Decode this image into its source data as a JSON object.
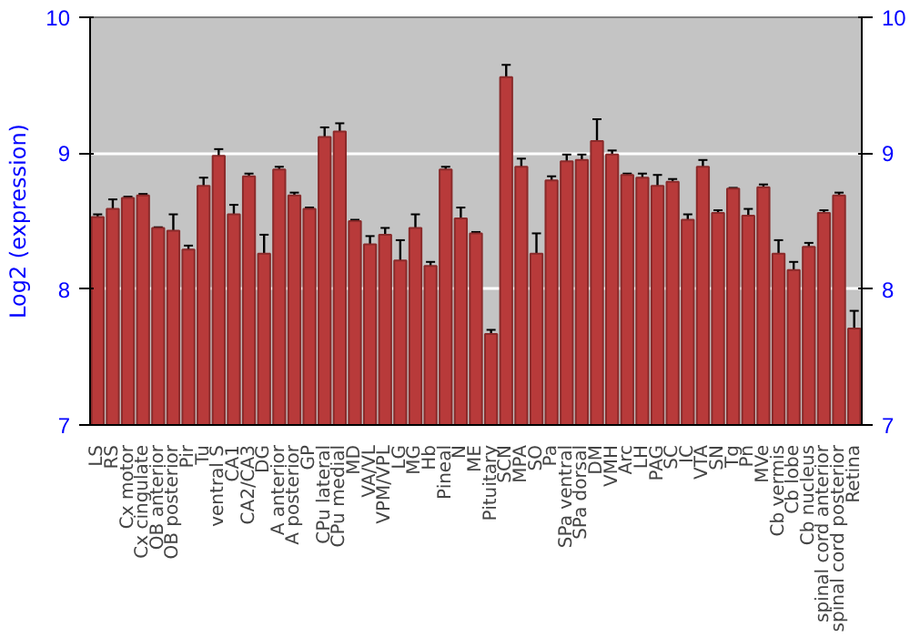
{
  "chart_data": {
    "type": "bar",
    "ylabel": "Log2 (expression)",
    "categories": [
      "LS",
      "RS",
      "Cx motor",
      "Cx cingulate",
      "OB anterior",
      "OB posterior",
      "Pir",
      "Tu",
      "ventral S",
      "CA1",
      "CA2/CA3",
      "DG",
      "A anterior",
      "A posterior",
      "GP",
      "CPu lateral",
      "CPu medial",
      "MD",
      "VA/VL",
      "VPM/VPL",
      "LG",
      "MG",
      "Hb",
      "Pineal",
      "N",
      "ME",
      "Pituitary",
      "SCN",
      "MPA",
      "SO",
      "Pa",
      "SPa ventral",
      "SPa dorsal",
      "DM",
      "VMH",
      "Arc",
      "LH",
      "PAG",
      "SC",
      "IC",
      "VTA",
      "SN",
      "Tg",
      "Pn",
      "MVe",
      "Cb vermis",
      "Cb lobe",
      "Cb nucleus",
      "spinal cord anterior",
      "spinal cord posterior",
      "Retina"
    ],
    "values": [
      8.53,
      8.59,
      8.67,
      8.69,
      8.45,
      8.43,
      8.29,
      8.76,
      8.98,
      8.55,
      8.83,
      8.26,
      8.88,
      8.69,
      8.59,
      9.12,
      9.16,
      8.5,
      8.33,
      8.4,
      8.21,
      8.45,
      8.17,
      8.88,
      8.52,
      8.41,
      7.67,
      9.56,
      8.9,
      8.26,
      8.8,
      8.94,
      8.95,
      9.09,
      8.99,
      8.84,
      8.82,
      8.76,
      8.79,
      8.51,
      8.9,
      8.56,
      8.74,
      8.54,
      8.75,
      8.26,
      8.14,
      8.31,
      8.56,
      8.69,
      7.71
    ],
    "errors": [
      0.02,
      0.07,
      0.01,
      0.01,
      0.005,
      0.12,
      0.03,
      0.06,
      0.05,
      0.07,
      0.02,
      0.14,
      0.02,
      0.02,
      0.01,
      0.07,
      0.06,
      0.01,
      0.06,
      0.05,
      0.15,
      0.1,
      0.03,
      0.02,
      0.08,
      0.01,
      0.03,
      0.09,
      0.06,
      0.15,
      0.03,
      0.05,
      0.04,
      0.16,
      0.03,
      0.01,
      0.03,
      0.08,
      0.02,
      0.04,
      0.05,
      0.02,
      0.005,
      0.05,
      0.02,
      0.1,
      0.06,
      0.03,
      0.02,
      0.02,
      0.13
    ],
    "color": "#b83a3a",
    "ylim": [
      7,
      10
    ],
    "yticks": [
      7,
      8,
      9,
      10
    ],
    "y2lim": [
      7,
      10
    ],
    "y2ticks": [
      7,
      8,
      9,
      10
    ],
    "grid": "y"
  }
}
